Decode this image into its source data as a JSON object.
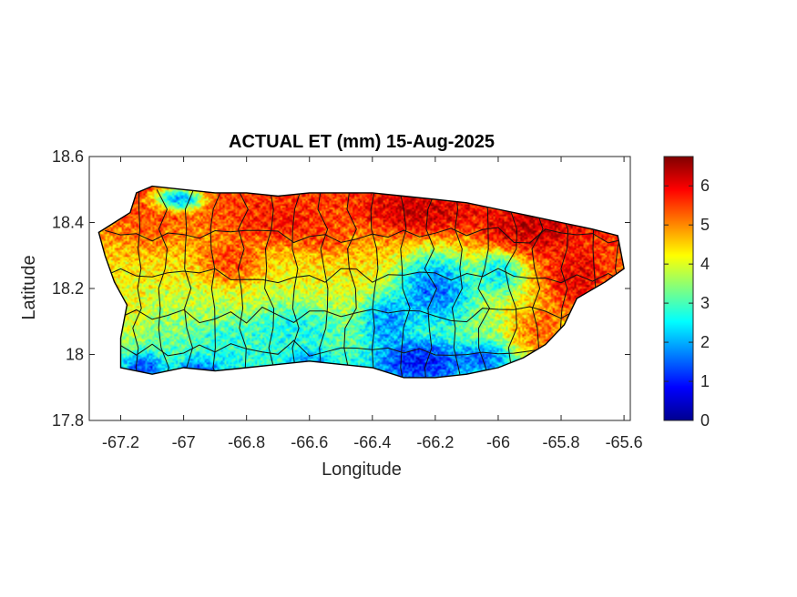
{
  "chart_data": {
    "type": "heatmap",
    "title": "ACTUAL ET (mm) 15-Aug-2025",
    "xlabel": "Longitude",
    "ylabel": "Latitude",
    "xlim": [
      -67.3,
      -65.58
    ],
    "ylim": [
      17.8,
      18.6
    ],
    "xticks": [
      -67.2,
      -67,
      -66.8,
      -66.6,
      -66.4,
      -66.2,
      -66,
      -65.8,
      -65.6
    ],
    "xtick_labels": [
      "-67.2",
      "-67",
      "-66.8",
      "-66.6",
      "-66.4",
      "-66.2",
      "-66",
      "-65.8",
      "-65.6"
    ],
    "yticks": [
      17.8,
      18,
      18.2,
      18.4,
      18.6
    ],
    "ytick_labels": [
      "17.8",
      "18",
      "18.2",
      "18.4",
      "18.6"
    ],
    "colorbar": {
      "colormap": "jet",
      "range": [
        0,
        6.75
      ],
      "ticks": [
        0,
        1,
        2,
        3,
        4,
        5,
        6
      ],
      "tick_labels": [
        "0",
        "1",
        "2",
        "3",
        "4",
        "5",
        "6"
      ]
    },
    "grid": false,
    "island_outline": [
      [
        -67.27,
        18.37
      ],
      [
        -67.22,
        18.4
      ],
      [
        -67.17,
        18.43
      ],
      [
        -67.15,
        18.49
      ],
      [
        -67.1,
        18.51
      ],
      [
        -67.0,
        18.5
      ],
      [
        -66.9,
        18.49
      ],
      [
        -66.8,
        18.49
      ],
      [
        -66.7,
        18.48
      ],
      [
        -66.6,
        18.49
      ],
      [
        -66.5,
        18.49
      ],
      [
        -66.4,
        18.49
      ],
      [
        -66.3,
        18.48
      ],
      [
        -66.2,
        18.47
      ],
      [
        -66.1,
        18.46
      ],
      [
        -66.0,
        18.44
      ],
      [
        -65.9,
        18.42
      ],
      [
        -65.8,
        18.4
      ],
      [
        -65.7,
        18.38
      ],
      [
        -65.62,
        18.36
      ],
      [
        -65.6,
        18.26
      ],
      [
        -65.66,
        18.22
      ],
      [
        -65.75,
        18.17
      ],
      [
        -65.79,
        18.09
      ],
      [
        -65.85,
        18.03
      ],
      [
        -65.92,
        17.99
      ],
      [
        -66.0,
        17.96
      ],
      [
        -66.05,
        17.95
      ],
      [
        -66.1,
        17.94
      ],
      [
        -66.2,
        17.93
      ],
      [
        -66.3,
        17.93
      ],
      [
        -66.4,
        17.96
      ],
      [
        -66.5,
        17.97
      ],
      [
        -66.6,
        17.98
      ],
      [
        -66.7,
        17.97
      ],
      [
        -66.8,
        17.96
      ],
      [
        -66.9,
        17.95
      ],
      [
        -67.0,
        17.96
      ],
      [
        -67.1,
        17.94
      ],
      [
        -67.2,
        17.96
      ],
      [
        -67.2,
        18.05
      ],
      [
        -67.18,
        18.15
      ],
      [
        -67.22,
        18.22
      ],
      [
        -67.25,
        18.3
      ]
    ],
    "et_anomalies": [
      {
        "lon": -67.02,
        "lat": 18.47,
        "et": 0.5,
        "sx": 0.06,
        "sy": 0.025
      },
      {
        "lon": -66.2,
        "lat": 18.2,
        "et": 0.7,
        "sx": 0.09,
        "sy": 0.08
      },
      {
        "lon": -66.25,
        "lat": 17.98,
        "et": 0.3,
        "sx": 0.1,
        "sy": 0.05
      },
      {
        "lon": -66.35,
        "lat": 18.1,
        "et": 1.2,
        "sx": 0.06,
        "sy": 0.06
      },
      {
        "lon": -66.95,
        "lat": 17.95,
        "et": 1.0,
        "sx": 0.05,
        "sy": 0.03
      },
      {
        "lon": -67.13,
        "lat": 17.96,
        "et": 0.8,
        "sx": 0.04,
        "sy": 0.03
      },
      {
        "lon": -66.05,
        "lat": 17.99,
        "et": 1.0,
        "sx": 0.06,
        "sy": 0.03
      },
      {
        "lon": -66.0,
        "lat": 18.25,
        "et": 1.8,
        "sx": 0.06,
        "sy": 0.05
      },
      {
        "lon": -66.25,
        "lat": 18.43,
        "et": 6.6,
        "sx": 0.14,
        "sy": 0.05
      },
      {
        "lon": -65.9,
        "lat": 18.38,
        "et": 6.6,
        "sx": 0.12,
        "sy": 0.06
      },
      {
        "lon": -65.75,
        "lat": 18.22,
        "et": 6.5,
        "sx": 0.08,
        "sy": 0.08
      },
      {
        "lon": -65.87,
        "lat": 18.07,
        "et": 5.8,
        "sx": 0.07,
        "sy": 0.06
      },
      {
        "lon": -66.7,
        "lat": 18.4,
        "et": 6.0,
        "sx": 0.12,
        "sy": 0.05
      },
      {
        "lon": -66.85,
        "lat": 18.28,
        "et": 5.8,
        "sx": 0.07,
        "sy": 0.05
      },
      {
        "lon": -67.1,
        "lat": 18.4,
        "et": 5.4,
        "sx": 0.07,
        "sy": 0.06
      },
      {
        "lon": -66.55,
        "lat": 18.36,
        "et": 5.6,
        "sx": 0.06,
        "sy": 0.04
      },
      {
        "lon": -66.65,
        "lat": 18.08,
        "et": 2.4,
        "sx": 0.1,
        "sy": 0.05
      },
      {
        "lon": -66.85,
        "lat": 18.03,
        "et": 2.6,
        "sx": 0.08,
        "sy": 0.05
      },
      {
        "lon": -66.6,
        "lat": 17.98,
        "et": 1.6,
        "sx": 0.05,
        "sy": 0.03
      },
      {
        "lon": -67.18,
        "lat": 18.15,
        "et": 4.3,
        "sx": 0.05,
        "sy": 0.08
      }
    ],
    "base_et": {
      "north": 5.6,
      "south": 2.6,
      "east_boost": 0.8
    }
  }
}
